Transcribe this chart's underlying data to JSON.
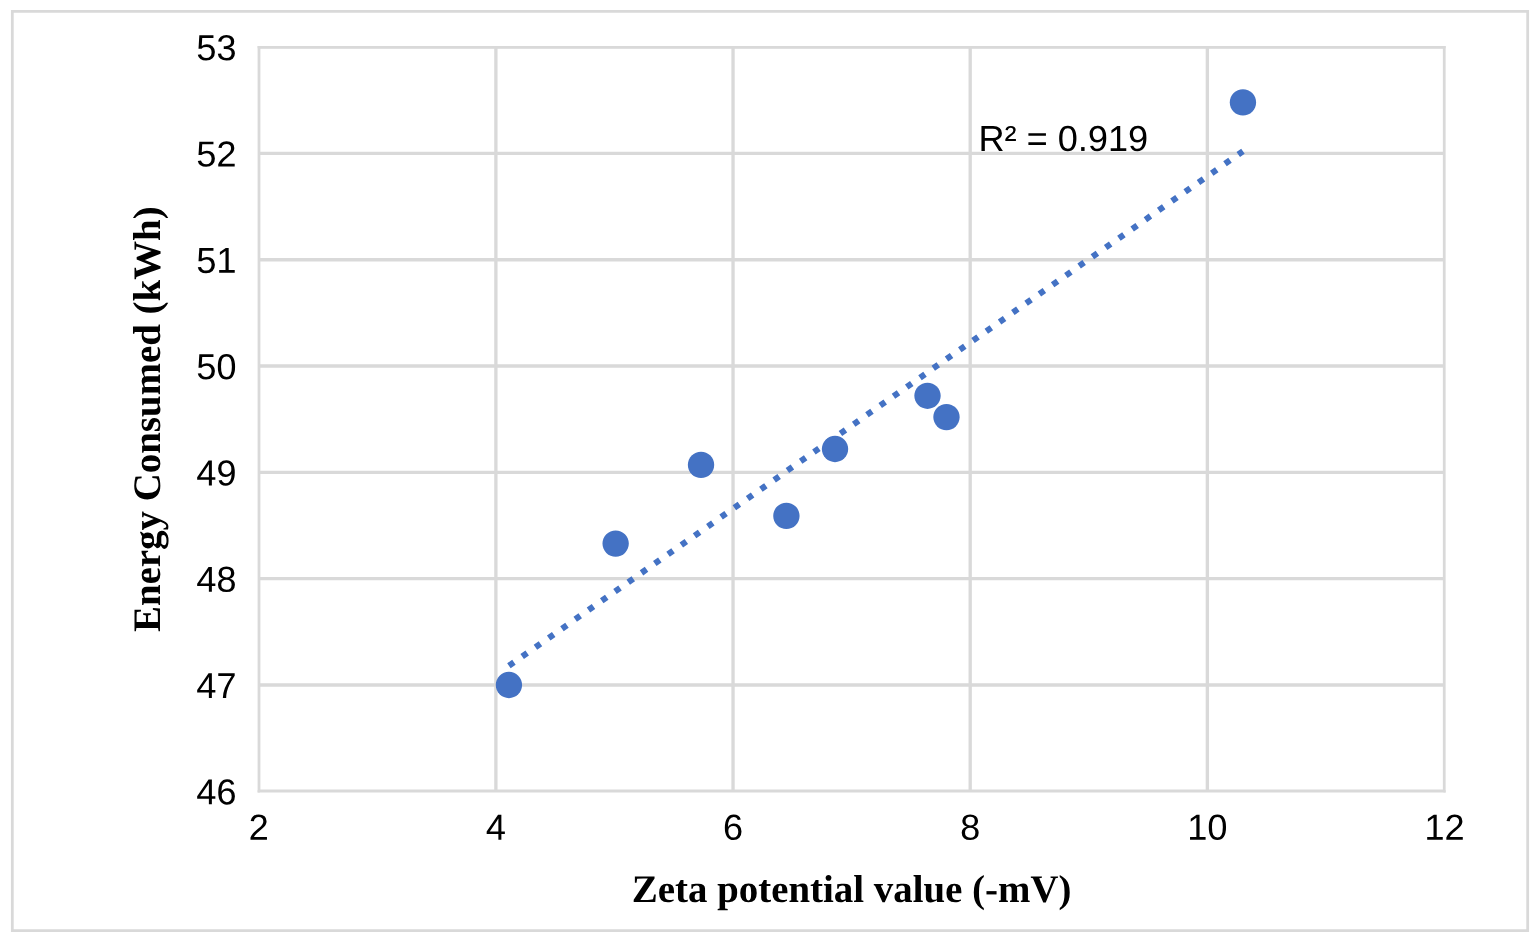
{
  "chart_data": {
    "type": "scatter",
    "xlabel": "Zeta potential value (-mV)",
    "ylabel": "Energy Consumed (kWh)",
    "annotations": [
      "R² = 0.919"
    ],
    "series": [
      {
        "color": "#4472c4",
        "marker": "circle",
        "x": [
          4.11,
          5.01,
          5.73,
          6.45,
          6.86,
          7.64,
          7.8,
          10.3
        ],
        "values": [
          47.0,
          48.33,
          49.07,
          48.59,
          49.22,
          49.72,
          49.52,
          52.48
        ]
      },
      {
        "type": "line",
        "color": "#4472c4",
        "line_style": "dotted",
        "marker": "none",
        "x": [
          4.11,
          10.3
        ],
        "values": [
          47.18,
          52.02
        ]
      }
    ],
    "xlim": [
      2,
      12
    ],
    "xticks": [
      2,
      4,
      6,
      8,
      10,
      12
    ],
    "ylim": [
      46,
      53
    ],
    "yticks": [
      46,
      47,
      48,
      49,
      50,
      51,
      52,
      53
    ],
    "grid": true,
    "legend": false
  }
}
